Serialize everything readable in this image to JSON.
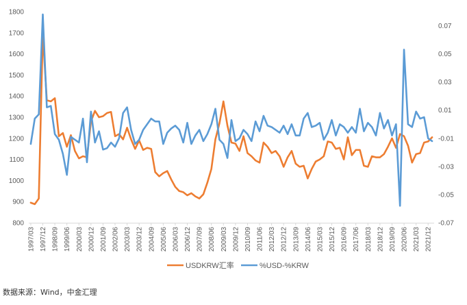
{
  "chart_data": {
    "type": "line",
    "x": [
      "1997/03",
      "1997/06",
      "1997/09",
      "1997/12",
      "1998/03",
      "1998/06",
      "1998/09",
      "1998/12",
      "1999/03",
      "1999/06",
      "1999/09",
      "1999/12",
      "2000/03",
      "2000/06",
      "2000/09",
      "2000/12",
      "2001/03",
      "2001/06",
      "2001/09",
      "2001/12",
      "2002/03",
      "2002/06",
      "2002/09",
      "2002/12",
      "2003/03",
      "2003/06",
      "2003/09",
      "2003/12",
      "2004/03",
      "2004/06",
      "2004/09",
      "2004/12",
      "2005/03",
      "2005/06",
      "2005/09",
      "2005/12",
      "2006/03",
      "2006/06",
      "2006/09",
      "2006/12",
      "2007/03",
      "2007/06",
      "2007/09",
      "2007/12",
      "2008/03",
      "2008/06",
      "2008/09",
      "2008/12",
      "2009/03",
      "2009/06",
      "2009/09",
      "2009/12",
      "2010/03",
      "2010/06",
      "2010/09",
      "2010/12",
      "2011/03",
      "2011/06",
      "2011/09",
      "2011/12",
      "2012/03",
      "2012/06",
      "2012/09",
      "2012/12",
      "2013/03",
      "2013/06",
      "2013/09",
      "2013/12",
      "2014/03",
      "2014/06",
      "2014/09",
      "2014/12",
      "2015/03",
      "2015/06",
      "2015/09",
      "2015/12",
      "2016/03",
      "2016/06",
      "2016/09",
      "2016/12",
      "2017/03",
      "2017/06",
      "2017/09",
      "2017/12",
      "2018/03",
      "2018/06",
      "2018/09",
      "2018/12",
      "2019/03",
      "2019/06",
      "2019/09",
      "2019/12",
      "2020/03",
      "2020/06",
      "2020/09",
      "2020/12",
      "2021/03",
      "2021/06",
      "2021/09",
      "2021/12",
      "2022/03"
    ],
    "x_tick_labels": [
      "1997/03",
      "1997/12",
      "1998/09",
      "1999/06",
      "2000/03",
      "2000/12",
      "2001/09",
      "2002/06",
      "2003/03",
      "2003/12",
      "2004/09",
      "2005/06",
      "2006/03",
      "2006/12",
      "2007/09",
      "2008/06",
      "2009/03",
      "2009/12",
      "2010/09",
      "2011/06",
      "2012/03",
      "2012/12",
      "2013/09",
      "2014/06",
      "2015/03",
      "2015/12",
      "2016/09",
      "2017/06",
      "2018/03",
      "2018/12",
      "2019/09",
      "2020/06",
      "2021/03",
      "2021/12"
    ],
    "series": [
      {
        "name": "USDKRW汇率",
        "axis": "left",
        "color": "#ED7D31",
        "values": [
          895,
          888,
          915,
          1695,
          1380,
          1375,
          1390,
          1210,
          1225,
          1160,
          1215,
          1140,
          1105,
          1115,
          1110,
          1280,
          1330,
          1300,
          1305,
          1320,
          1325,
          1210,
          1220,
          1195,
          1250,
          1195,
          1150,
          1190,
          1145,
          1155,
          1150,
          1040,
          1020,
          1035,
          1045,
          1005,
          970,
          950,
          945,
          930,
          940,
          925,
          915,
          935,
          990,
          1055,
          1195,
          1270,
          1375,
          1260,
          1180,
          1175,
          1140,
          1210,
          1130,
          1115,
          1095,
          1085,
          1180,
          1160,
          1130,
          1140,
          1115,
          1065,
          1110,
          1140,
          1080,
          1065,
          1070,
          1010,
          1055,
          1090,
          1100,
          1115,
          1185,
          1180,
          1150,
          1155,
          1100,
          1205,
          1120,
          1145,
          1145,
          1070,
          1065,
          1115,
          1110,
          1110,
          1125,
          1160,
          1200,
          1155,
          1220,
          1210,
          1165,
          1085,
          1125,
          1130,
          1180,
          1185,
          1205
        ]
      },
      {
        "name": "%USD-%KRW",
        "axis": "right",
        "color": "#5B9BD5",
        "values": [
          -0.014,
          0.004,
          0.007,
          0.078,
          0.012,
          0.013,
          -0.007,
          -0.011,
          -0.021,
          -0.036,
          -0.009,
          -0.011,
          -0.013,
          0.004,
          -0.027,
          0.009,
          -0.013,
          -0.005,
          -0.018,
          -0.017,
          -0.013,
          -0.016,
          -0.01,
          0.008,
          0.012,
          -0.004,
          -0.014,
          -0.011,
          -0.004,
          0.0,
          0.004,
          0.002,
          0.002,
          -0.014,
          -0.006,
          -0.003,
          -0.001,
          -0.004,
          -0.013,
          0.001,
          -0.014,
          -0.008,
          -0.004,
          -0.012,
          -0.007,
          0.0,
          0.011,
          -0.011,
          -0.014,
          -0.024,
          0.003,
          -0.012,
          -0.01,
          -0.004,
          -0.007,
          -0.012,
          0.002,
          -0.005,
          0.006,
          -0.001,
          -0.002,
          -0.004,
          -0.006,
          -0.001,
          -0.007,
          0.0,
          -0.008,
          -0.008,
          0.004,
          0.008,
          -0.002,
          -0.001,
          0.001,
          -0.011,
          -0.006,
          0.003,
          -0.008,
          0.0,
          -0.002,
          -0.006,
          -0.002,
          -0.006,
          0.011,
          -0.005,
          0.001,
          -0.002,
          -0.008,
          0.008,
          -0.003,
          0.003,
          -0.008,
          0.0,
          -0.058,
          0.053,
          0.0,
          -0.002,
          0.009,
          0.004,
          0.005,
          -0.01,
          -0.012
        ]
      }
    ],
    "y_left": {
      "ylim": [
        800,
        1800
      ],
      "ticks": [
        "800",
        "900",
        "1000",
        "1100",
        "1200",
        "1300",
        "1400",
        "1500",
        "1600",
        "1700",
        "1800"
      ]
    },
    "y_right": {
      "ylim": [
        -0.07,
        0.08
      ],
      "ticks": [
        "-0.07",
        "-0.05",
        "-0.03",
        "-0.01",
        "0.01",
        "0.03",
        "0.05",
        "0.07"
      ]
    },
    "grid": false,
    "legend_position": "bottom"
  },
  "source_note": "数据来源：Wind，中金汇理"
}
